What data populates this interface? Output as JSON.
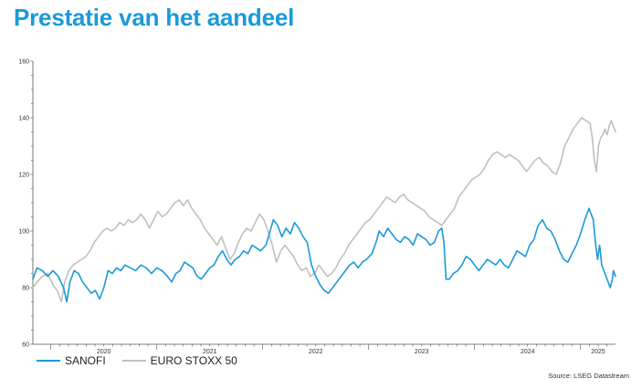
{
  "title": "Prestatie van het aandeel",
  "source": "Source: LSEG Datastream",
  "colors": {
    "sanofi": "#1a9ad9",
    "eurostoxx": "#c0c0c0",
    "title": "#1a9ad9"
  },
  "legend": [
    {
      "name": "SANOFI",
      "color": "#1a9ad9"
    },
    {
      "name": "EURO STOXX 50",
      "color": "#c0c0c0"
    }
  ],
  "chart_data": {
    "type": "line",
    "title": "Prestatie van het aandeel",
    "xlabel": "",
    "ylabel": "",
    "ylim": [
      60,
      160
    ],
    "y_ticks": [
      60,
      80,
      100,
      120,
      140,
      160
    ],
    "x_range": [
      2019.83,
      2025.33
    ],
    "x_ticks": [
      {
        "label": "2020",
        "x": 2020.0
      },
      {
        "label": "2021",
        "x": 2021.0
      },
      {
        "label": "2022",
        "x": 2022.0
      },
      {
        "label": "2023",
        "x": 2023.0
      },
      {
        "label": "2024",
        "x": 2024.0
      },
      {
        "label": "2025",
        "x": 2025.0
      }
    ],
    "grid": false,
    "legend_position": "bottom-left",
    "series": [
      {
        "name": "SANOFI",
        "color": "#1a9ad9",
        "points": [
          [
            2019.83,
            83
          ],
          [
            2019.87,
            87
          ],
          [
            2019.92,
            86
          ],
          [
            2019.97,
            84
          ],
          [
            2020.02,
            86
          ],
          [
            2020.07,
            84
          ],
          [
            2020.12,
            80
          ],
          [
            2020.15,
            75
          ],
          [
            2020.18,
            82
          ],
          [
            2020.22,
            86
          ],
          [
            2020.26,
            85
          ],
          [
            2020.3,
            82
          ],
          [
            2020.34,
            80
          ],
          [
            2020.38,
            78
          ],
          [
            2020.42,
            79
          ],
          [
            2020.46,
            76
          ],
          [
            2020.5,
            80
          ],
          [
            2020.54,
            86
          ],
          [
            2020.58,
            85
          ],
          [
            2020.62,
            87
          ],
          [
            2020.66,
            86
          ],
          [
            2020.7,
            88
          ],
          [
            2020.75,
            87
          ],
          [
            2020.8,
            86
          ],
          [
            2020.85,
            88
          ],
          [
            2020.9,
            87
          ],
          [
            2020.95,
            85
          ],
          [
            2021.0,
            87
          ],
          [
            2021.05,
            86
          ],
          [
            2021.1,
            84
          ],
          [
            2021.14,
            82
          ],
          [
            2021.18,
            85
          ],
          [
            2021.22,
            86
          ],
          [
            2021.26,
            89
          ],
          [
            2021.3,
            88
          ],
          [
            2021.34,
            87
          ],
          [
            2021.38,
            84
          ],
          [
            2021.42,
            83
          ],
          [
            2021.46,
            85
          ],
          [
            2021.5,
            87
          ],
          [
            2021.54,
            88
          ],
          [
            2021.58,
            91
          ],
          [
            2021.62,
            93
          ],
          [
            2021.66,
            90
          ],
          [
            2021.7,
            88
          ],
          [
            2021.74,
            90
          ],
          [
            2021.78,
            91
          ],
          [
            2021.82,
            93
          ],
          [
            2021.86,
            92
          ],
          [
            2021.9,
            95
          ],
          [
            2021.94,
            94
          ],
          [
            2021.98,
            93
          ],
          [
            2022.03,
            95
          ],
          [
            2022.07,
            100
          ],
          [
            2022.1,
            104
          ],
          [
            2022.14,
            102
          ],
          [
            2022.18,
            98
          ],
          [
            2022.22,
            101
          ],
          [
            2022.26,
            99
          ],
          [
            2022.3,
            103
          ],
          [
            2022.34,
            101
          ],
          [
            2022.38,
            98
          ],
          [
            2022.42,
            96
          ],
          [
            2022.46,
            88
          ],
          [
            2022.5,
            84
          ],
          [
            2022.54,
            81
          ],
          [
            2022.58,
            79
          ],
          [
            2022.62,
            78
          ],
          [
            2022.66,
            80
          ],
          [
            2022.7,
            82
          ],
          [
            2022.74,
            84
          ],
          [
            2022.78,
            86
          ],
          [
            2022.82,
            88
          ],
          [
            2022.86,
            89
          ],
          [
            2022.9,
            87
          ],
          [
            2022.94,
            89
          ],
          [
            2022.98,
            90
          ],
          [
            2023.03,
            92
          ],
          [
            2023.07,
            96
          ],
          [
            2023.1,
            100
          ],
          [
            2023.14,
            98
          ],
          [
            2023.18,
            101
          ],
          [
            2023.22,
            99
          ],
          [
            2023.26,
            97
          ],
          [
            2023.3,
            96
          ],
          [
            2023.34,
            98
          ],
          [
            2023.38,
            97
          ],
          [
            2023.42,
            95
          ],
          [
            2023.46,
            99
          ],
          [
            2023.5,
            98
          ],
          [
            2023.54,
            97
          ],
          [
            2023.58,
            95
          ],
          [
            2023.62,
            96
          ],
          [
            2023.66,
            100
          ],
          [
            2023.69,
            101
          ],
          [
            2023.71,
            96
          ],
          [
            2023.73,
            83
          ],
          [
            2023.76,
            83
          ],
          [
            2023.8,
            85
          ],
          [
            2023.84,
            86
          ],
          [
            2023.88,
            88
          ],
          [
            2023.92,
            91
          ],
          [
            2023.96,
            90
          ],
          [
            2024.0,
            88
          ],
          [
            2024.04,
            86
          ],
          [
            2024.08,
            88
          ],
          [
            2024.12,
            90
          ],
          [
            2024.16,
            89
          ],
          [
            2024.2,
            88
          ],
          [
            2024.24,
            90
          ],
          [
            2024.28,
            88
          ],
          [
            2024.32,
            87
          ],
          [
            2024.36,
            90
          ],
          [
            2024.4,
            93
          ],
          [
            2024.44,
            92
          ],
          [
            2024.48,
            91
          ],
          [
            2024.52,
            95
          ],
          [
            2024.56,
            97
          ],
          [
            2024.6,
            102
          ],
          [
            2024.64,
            104
          ],
          [
            2024.68,
            101
          ],
          [
            2024.72,
            100
          ],
          [
            2024.76,
            97
          ],
          [
            2024.8,
            93
          ],
          [
            2024.84,
            90
          ],
          [
            2024.88,
            89
          ],
          [
            2024.92,
            92
          ],
          [
            2024.96,
            95
          ],
          [
            2025.0,
            99
          ],
          [
            2025.04,
            104
          ],
          [
            2025.08,
            108
          ],
          [
            2025.12,
            104
          ],
          [
            2025.14,
            96
          ],
          [
            2025.16,
            90
          ],
          [
            2025.18,
            95
          ],
          [
            2025.2,
            88
          ],
          [
            2025.23,
            85
          ],
          [
            2025.26,
            82
          ],
          [
            2025.28,
            80
          ],
          [
            2025.3,
            83
          ],
          [
            2025.31,
            86
          ],
          [
            2025.32,
            85
          ],
          [
            2025.33,
            84
          ]
        ]
      },
      {
        "name": "EURO STOXX 50",
        "color": "#c0c0c0",
        "points": [
          [
            2019.83,
            80
          ],
          [
            2019.87,
            82
          ],
          [
            2019.92,
            84
          ],
          [
            2019.97,
            85
          ],
          [
            2020.02,
            81
          ],
          [
            2020.06,
            79
          ],
          [
            2020.1,
            75
          ],
          [
            2020.13,
            82
          ],
          [
            2020.17,
            86
          ],
          [
            2020.21,
            88
          ],
          [
            2020.25,
            89
          ],
          [
            2020.29,
            90
          ],
          [
            2020.33,
            91
          ],
          [
            2020.37,
            93
          ],
          [
            2020.41,
            96
          ],
          [
            2020.45,
            98
          ],
          [
            2020.49,
            100
          ],
          [
            2020.53,
            101
          ],
          [
            2020.57,
            100
          ],
          [
            2020.61,
            101
          ],
          [
            2020.65,
            103
          ],
          [
            2020.69,
            102
          ],
          [
            2020.73,
            104
          ],
          [
            2020.77,
            103
          ],
          [
            2020.81,
            104
          ],
          [
            2020.85,
            106
          ],
          [
            2020.89,
            104
          ],
          [
            2020.93,
            101
          ],
          [
            2020.97,
            104
          ],
          [
            2021.01,
            107
          ],
          [
            2021.05,
            105
          ],
          [
            2021.09,
            106
          ],
          [
            2021.13,
            108
          ],
          [
            2021.17,
            110
          ],
          [
            2021.21,
            111
          ],
          [
            2021.25,
            109
          ],
          [
            2021.29,
            111
          ],
          [
            2021.33,
            108
          ],
          [
            2021.37,
            106
          ],
          [
            2021.41,
            104
          ],
          [
            2021.45,
            101
          ],
          [
            2021.49,
            99
          ],
          [
            2021.53,
            97
          ],
          [
            2021.57,
            95
          ],
          [
            2021.61,
            98
          ],
          [
            2021.65,
            94
          ],
          [
            2021.69,
            90
          ],
          [
            2021.73,
            92
          ],
          [
            2021.77,
            96
          ],
          [
            2021.81,
            99
          ],
          [
            2021.85,
            101
          ],
          [
            2021.89,
            100
          ],
          [
            2021.93,
            103
          ],
          [
            2021.97,
            106
          ],
          [
            2022.01,
            104
          ],
          [
            2022.05,
            100
          ],
          [
            2022.09,
            95
          ],
          [
            2022.13,
            89
          ],
          [
            2022.17,
            93
          ],
          [
            2022.21,
            95
          ],
          [
            2022.25,
            93
          ],
          [
            2022.29,
            91
          ],
          [
            2022.33,
            88
          ],
          [
            2022.37,
            86
          ],
          [
            2022.41,
            87
          ],
          [
            2022.45,
            84
          ],
          [
            2022.49,
            85
          ],
          [
            2022.53,
            88
          ],
          [
            2022.57,
            86
          ],
          [
            2022.61,
            84
          ],
          [
            2022.65,
            85
          ],
          [
            2022.69,
            87
          ],
          [
            2022.73,
            90
          ],
          [
            2022.77,
            92
          ],
          [
            2022.81,
            95
          ],
          [
            2022.85,
            97
          ],
          [
            2022.89,
            99
          ],
          [
            2022.93,
            101
          ],
          [
            2022.97,
            103
          ],
          [
            2023.01,
            104
          ],
          [
            2023.05,
            106
          ],
          [
            2023.09,
            108
          ],
          [
            2023.13,
            110
          ],
          [
            2023.17,
            112
          ],
          [
            2023.21,
            111
          ],
          [
            2023.25,
            110
          ],
          [
            2023.29,
            112
          ],
          [
            2023.33,
            113
          ],
          [
            2023.37,
            111
          ],
          [
            2023.41,
            110
          ],
          [
            2023.45,
            109
          ],
          [
            2023.49,
            108
          ],
          [
            2023.53,
            107
          ],
          [
            2023.57,
            105
          ],
          [
            2023.61,
            104
          ],
          [
            2023.65,
            103
          ],
          [
            2023.69,
            102
          ],
          [
            2023.73,
            104
          ],
          [
            2023.77,
            106
          ],
          [
            2023.81,
            108
          ],
          [
            2023.85,
            112
          ],
          [
            2023.89,
            114
          ],
          [
            2023.93,
            116
          ],
          [
            2023.97,
            118
          ],
          [
            2024.01,
            119
          ],
          [
            2024.05,
            120
          ],
          [
            2024.09,
            122
          ],
          [
            2024.13,
            125
          ],
          [
            2024.17,
            127
          ],
          [
            2024.21,
            128
          ],
          [
            2024.25,
            127
          ],
          [
            2024.29,
            126
          ],
          [
            2024.33,
            127
          ],
          [
            2024.37,
            126
          ],
          [
            2024.41,
            125
          ],
          [
            2024.45,
            123
          ],
          [
            2024.49,
            121
          ],
          [
            2024.53,
            123
          ],
          [
            2024.57,
            125
          ],
          [
            2024.61,
            126
          ],
          [
            2024.65,
            124
          ],
          [
            2024.69,
            123
          ],
          [
            2024.73,
            121
          ],
          [
            2024.77,
            120
          ],
          [
            2024.81,
            124
          ],
          [
            2024.85,
            130
          ],
          [
            2024.89,
            133
          ],
          [
            2024.93,
            136
          ],
          [
            2024.97,
            138
          ],
          [
            2025.01,
            140
          ],
          [
            2025.05,
            139
          ],
          [
            2025.09,
            138
          ],
          [
            2025.11,
            133
          ],
          [
            2025.13,
            125
          ],
          [
            2025.15,
            121
          ],
          [
            2025.17,
            130
          ],
          [
            2025.19,
            133
          ],
          [
            2025.21,
            134
          ],
          [
            2025.23,
            136
          ],
          [
            2025.25,
            134
          ],
          [
            2025.27,
            137
          ],
          [
            2025.29,
            139
          ],
          [
            2025.31,
            137
          ],
          [
            2025.33,
            135
          ]
        ]
      }
    ]
  }
}
